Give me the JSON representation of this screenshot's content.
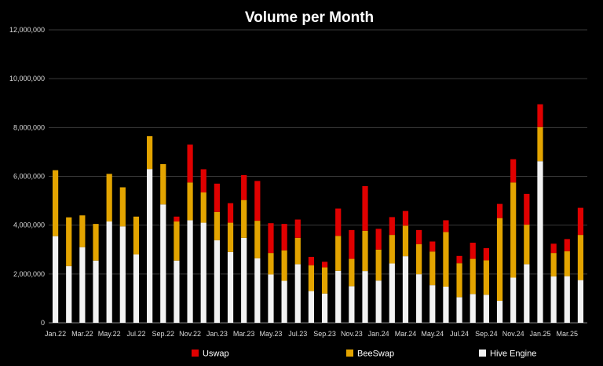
{
  "chart_data": {
    "type": "bar",
    "stacked": true,
    "title": "Volume per Month",
    "xlabel": "",
    "ylabel": "",
    "ylim": [
      0,
      12000000
    ],
    "yticks": [
      "0",
      "2,000,000",
      "4,000,000",
      "6,000,000",
      "8,000,000",
      "10,000,000",
      "12,000,000"
    ],
    "ytick_values": [
      0,
      2000000,
      4000000,
      6000000,
      8000000,
      10000000,
      12000000
    ],
    "grid": true,
    "legend_position": "bottom",
    "categories": [
      "Jan.22",
      "Feb.22",
      "Mar.22",
      "Apr.22",
      "May.22",
      "Jun.22",
      "Jul.22",
      "Aug.22",
      "Sep.22",
      "Oct.22",
      "Nov.22",
      "Dec.22",
      "Jan.23",
      "Feb.23",
      "Mar.23",
      "Apr.23",
      "May.23",
      "Jun.23",
      "Jul.23",
      "Aug.23",
      "Sep.23",
      "Oct.23",
      "Nov.23",
      "Dec.23",
      "Jan.24",
      "Feb.24",
      "Mar.24",
      "Apr.24",
      "May.24",
      "Jun.24",
      "Jul.24",
      "Aug.24",
      "Sep.24",
      "Oct.24",
      "Nov.24",
      "Dec.24",
      "Jan.25",
      "Feb.25",
      "Mar.25",
      "Apr.25"
    ],
    "shown_tick_labels": [
      "Jan.22",
      "Mar.22",
      "May.22",
      "Jul.22",
      "Sep.22",
      "Nov.22",
      "Jan.23",
      "Mar.23",
      "May.23",
      "Jul.23",
      "Sep.23",
      "Nov.23",
      "Jan.24",
      "Mar.24",
      "May.24",
      "Jul.24",
      "Sep.24",
      "Nov.24",
      "Jan.25",
      "Mar.25"
    ],
    "series": [
      {
        "name": "Hive Engine",
        "color": "#f2f2f2",
        "values": [
          3550000,
          2320000,
          3100000,
          2550000,
          4150000,
          3950000,
          2800000,
          6300000,
          4850000,
          2550000,
          4200000,
          4100000,
          3380000,
          2900000,
          3480000,
          2640000,
          1980000,
          1720000,
          2400000,
          1300000,
          1200000,
          2130000,
          1500000,
          2120000,
          1730000,
          2430000,
          2730000,
          1990000,
          1540000,
          1480000,
          1050000,
          1180000,
          1150000,
          900000,
          1850000,
          2400000,
          6620000,
          1900000,
          1910000,
          1750000
        ]
      },
      {
        "name": "BeeSwap",
        "color": "#e3a400",
        "values": [
          2700000,
          2000000,
          1300000,
          1500000,
          1950000,
          1600000,
          1550000,
          1350000,
          1650000,
          1600000,
          1550000,
          1240000,
          1160000,
          1200000,
          1550000,
          1540000,
          880000,
          1250000,
          1080000,
          1060000,
          1070000,
          1430000,
          1120000,
          1650000,
          1270000,
          1170000,
          1250000,
          1230000,
          1380000,
          2240000,
          1390000,
          1440000,
          1410000,
          3390000,
          3900000,
          1620000,
          1400000,
          960000,
          1020000,
          1850000
        ]
      },
      {
        "name": "Uswap",
        "color": "#e00000",
        "values": [
          0,
          0,
          0,
          0,
          0,
          0,
          0,
          0,
          0,
          200000,
          1550000,
          950000,
          1160000,
          800000,
          1020000,
          1630000,
          1220000,
          1080000,
          750000,
          340000,
          230000,
          1120000,
          1180000,
          1830000,
          850000,
          730000,
          600000,
          580000,
          410000,
          480000,
          300000,
          660000,
          500000,
          580000,
          950000,
          1260000,
          930000,
          380000,
          500000,
          1110000
        ]
      }
    ]
  }
}
